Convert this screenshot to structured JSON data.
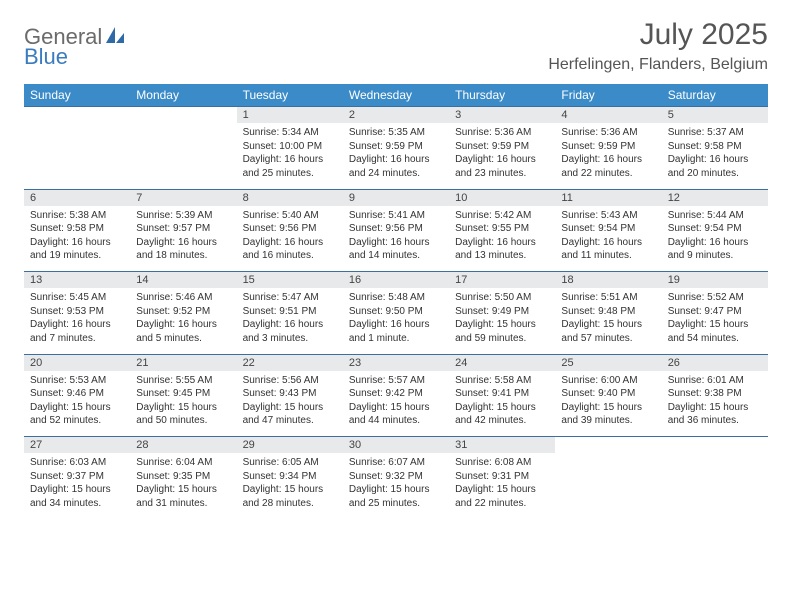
{
  "brand": {
    "part1": "General",
    "part2": "Blue"
  },
  "title": "July 2025",
  "location": "Herfelingen, Flanders, Belgium",
  "colors": {
    "header_bg": "#3b8bc8",
    "header_text": "#ffffff",
    "daynum_bg": "#e8e9ea",
    "rule": "#3b6fa0",
    "logo_gray": "#6b6b6b",
    "logo_blue": "#3b7bbf",
    "text": "#333333",
    "page_bg": "#ffffff"
  },
  "weekdays": [
    "Sunday",
    "Monday",
    "Tuesday",
    "Wednesday",
    "Thursday",
    "Friday",
    "Saturday"
  ],
  "weeks": [
    [
      null,
      null,
      {
        "n": "1",
        "sr": "Sunrise: 5:34 AM",
        "ss": "Sunset: 10:00 PM",
        "d1": "Daylight: 16 hours",
        "d2": "and 25 minutes."
      },
      {
        "n": "2",
        "sr": "Sunrise: 5:35 AM",
        "ss": "Sunset: 9:59 PM",
        "d1": "Daylight: 16 hours",
        "d2": "and 24 minutes."
      },
      {
        "n": "3",
        "sr": "Sunrise: 5:36 AM",
        "ss": "Sunset: 9:59 PM",
        "d1": "Daylight: 16 hours",
        "d2": "and 23 minutes."
      },
      {
        "n": "4",
        "sr": "Sunrise: 5:36 AM",
        "ss": "Sunset: 9:59 PM",
        "d1": "Daylight: 16 hours",
        "d2": "and 22 minutes."
      },
      {
        "n": "5",
        "sr": "Sunrise: 5:37 AM",
        "ss": "Sunset: 9:58 PM",
        "d1": "Daylight: 16 hours",
        "d2": "and 20 minutes."
      }
    ],
    [
      {
        "n": "6",
        "sr": "Sunrise: 5:38 AM",
        "ss": "Sunset: 9:58 PM",
        "d1": "Daylight: 16 hours",
        "d2": "and 19 minutes."
      },
      {
        "n": "7",
        "sr": "Sunrise: 5:39 AM",
        "ss": "Sunset: 9:57 PM",
        "d1": "Daylight: 16 hours",
        "d2": "and 18 minutes."
      },
      {
        "n": "8",
        "sr": "Sunrise: 5:40 AM",
        "ss": "Sunset: 9:56 PM",
        "d1": "Daylight: 16 hours",
        "d2": "and 16 minutes."
      },
      {
        "n": "9",
        "sr": "Sunrise: 5:41 AM",
        "ss": "Sunset: 9:56 PM",
        "d1": "Daylight: 16 hours",
        "d2": "and 14 minutes."
      },
      {
        "n": "10",
        "sr": "Sunrise: 5:42 AM",
        "ss": "Sunset: 9:55 PM",
        "d1": "Daylight: 16 hours",
        "d2": "and 13 minutes."
      },
      {
        "n": "11",
        "sr": "Sunrise: 5:43 AM",
        "ss": "Sunset: 9:54 PM",
        "d1": "Daylight: 16 hours",
        "d2": "and 11 minutes."
      },
      {
        "n": "12",
        "sr": "Sunrise: 5:44 AM",
        "ss": "Sunset: 9:54 PM",
        "d1": "Daylight: 16 hours",
        "d2": "and 9 minutes."
      }
    ],
    [
      {
        "n": "13",
        "sr": "Sunrise: 5:45 AM",
        "ss": "Sunset: 9:53 PM",
        "d1": "Daylight: 16 hours",
        "d2": "and 7 minutes."
      },
      {
        "n": "14",
        "sr": "Sunrise: 5:46 AM",
        "ss": "Sunset: 9:52 PM",
        "d1": "Daylight: 16 hours",
        "d2": "and 5 minutes."
      },
      {
        "n": "15",
        "sr": "Sunrise: 5:47 AM",
        "ss": "Sunset: 9:51 PM",
        "d1": "Daylight: 16 hours",
        "d2": "and 3 minutes."
      },
      {
        "n": "16",
        "sr": "Sunrise: 5:48 AM",
        "ss": "Sunset: 9:50 PM",
        "d1": "Daylight: 16 hours",
        "d2": "and 1 minute."
      },
      {
        "n": "17",
        "sr": "Sunrise: 5:50 AM",
        "ss": "Sunset: 9:49 PM",
        "d1": "Daylight: 15 hours",
        "d2": "and 59 minutes."
      },
      {
        "n": "18",
        "sr": "Sunrise: 5:51 AM",
        "ss": "Sunset: 9:48 PM",
        "d1": "Daylight: 15 hours",
        "d2": "and 57 minutes."
      },
      {
        "n": "19",
        "sr": "Sunrise: 5:52 AM",
        "ss": "Sunset: 9:47 PM",
        "d1": "Daylight: 15 hours",
        "d2": "and 54 minutes."
      }
    ],
    [
      {
        "n": "20",
        "sr": "Sunrise: 5:53 AM",
        "ss": "Sunset: 9:46 PM",
        "d1": "Daylight: 15 hours",
        "d2": "and 52 minutes."
      },
      {
        "n": "21",
        "sr": "Sunrise: 5:55 AM",
        "ss": "Sunset: 9:45 PM",
        "d1": "Daylight: 15 hours",
        "d2": "and 50 minutes."
      },
      {
        "n": "22",
        "sr": "Sunrise: 5:56 AM",
        "ss": "Sunset: 9:43 PM",
        "d1": "Daylight: 15 hours",
        "d2": "and 47 minutes."
      },
      {
        "n": "23",
        "sr": "Sunrise: 5:57 AM",
        "ss": "Sunset: 9:42 PM",
        "d1": "Daylight: 15 hours",
        "d2": "and 44 minutes."
      },
      {
        "n": "24",
        "sr": "Sunrise: 5:58 AM",
        "ss": "Sunset: 9:41 PM",
        "d1": "Daylight: 15 hours",
        "d2": "and 42 minutes."
      },
      {
        "n": "25",
        "sr": "Sunrise: 6:00 AM",
        "ss": "Sunset: 9:40 PM",
        "d1": "Daylight: 15 hours",
        "d2": "and 39 minutes."
      },
      {
        "n": "26",
        "sr": "Sunrise: 6:01 AM",
        "ss": "Sunset: 9:38 PM",
        "d1": "Daylight: 15 hours",
        "d2": "and 36 minutes."
      }
    ],
    [
      {
        "n": "27",
        "sr": "Sunrise: 6:03 AM",
        "ss": "Sunset: 9:37 PM",
        "d1": "Daylight: 15 hours",
        "d2": "and 34 minutes."
      },
      {
        "n": "28",
        "sr": "Sunrise: 6:04 AM",
        "ss": "Sunset: 9:35 PM",
        "d1": "Daylight: 15 hours",
        "d2": "and 31 minutes."
      },
      {
        "n": "29",
        "sr": "Sunrise: 6:05 AM",
        "ss": "Sunset: 9:34 PM",
        "d1": "Daylight: 15 hours",
        "d2": "and 28 minutes."
      },
      {
        "n": "30",
        "sr": "Sunrise: 6:07 AM",
        "ss": "Sunset: 9:32 PM",
        "d1": "Daylight: 15 hours",
        "d2": "and 25 minutes."
      },
      {
        "n": "31",
        "sr": "Sunrise: 6:08 AM",
        "ss": "Sunset: 9:31 PM",
        "d1": "Daylight: 15 hours",
        "d2": "and 22 minutes."
      },
      null,
      null
    ]
  ]
}
